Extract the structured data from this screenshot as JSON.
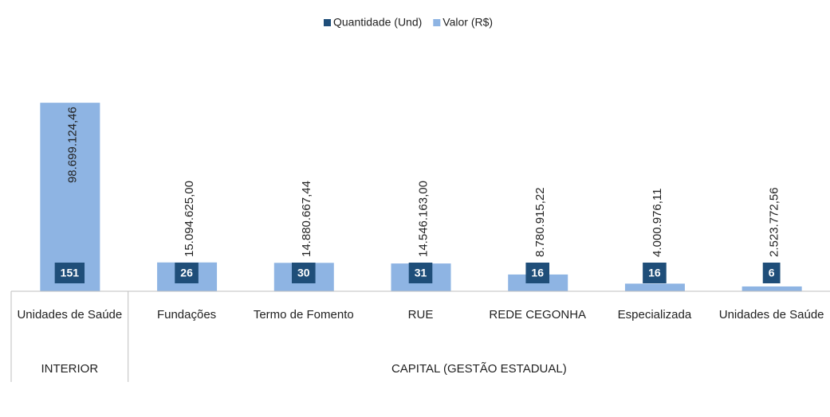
{
  "chart_data": {
    "type": "bar",
    "categories": [
      "Unidades de Saúde",
      "Fundações",
      "Termo de Fomento",
      "RUE",
      "REDE CEGONHA",
      "Especializada",
      "Unidades de Saúde"
    ],
    "groups": [
      {
        "label": "INTERIOR",
        "count": 1
      },
      {
        "label": "CAPITAL (GESTÃO ESTADUAL)",
        "count": 6
      }
    ],
    "series": [
      {
        "name": "Quantidade (Und)",
        "color": "#1f4e79",
        "values": [
          151,
          26,
          30,
          31,
          16,
          16,
          6
        ]
      },
      {
        "name": "Valor (R$)",
        "color": "#8eb4e3",
        "values": [
          98699124.46,
          15094625.0,
          14880667.44,
          14546163.0,
          8780915.22,
          4000976.11,
          2523772.56
        ],
        "value_labels": [
          "98.699.124,46",
          "15.094.625,00",
          "14.880.667,44",
          "14.546.163,00",
          "8.780.915,22",
          "4.000.976,11",
          "2.523.772,56"
        ]
      }
    ],
    "ylim": [
      0,
      100000000
    ],
    "legend": "top"
  }
}
